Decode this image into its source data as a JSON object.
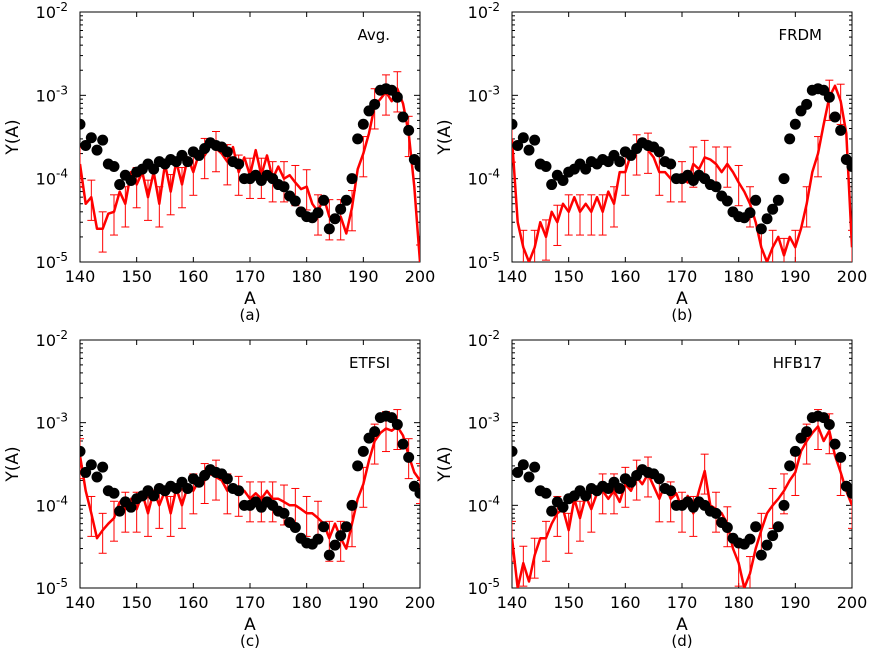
{
  "chart_data": [
    {
      "type": "scatter",
      "model_label": "Avg.",
      "panel_label": "(a)",
      "xlabel": "A",
      "ylabel": "Y(A)",
      "xlim": [
        140,
        200
      ],
      "ylim": [
        1e-05,
        0.01
      ],
      "yscale": "log",
      "xticks": [
        "140",
        "150",
        "160",
        "170",
        "180",
        "190",
        "200"
      ],
      "yticks": [
        {
          "base": "10",
          "exp": "-5"
        },
        {
          "base": "10",
          "exp": "-4"
        },
        {
          "base": "10",
          "exp": "-3"
        },
        {
          "base": "10",
          "exp": "-2"
        }
      ],
      "observed": {
        "color": "#000000",
        "x": [
          140,
          141,
          142,
          143,
          144,
          145,
          146,
          147,
          148,
          149,
          150,
          151,
          152,
          153,
          154,
          155,
          156,
          157,
          158,
          159,
          160,
          161,
          162,
          163,
          164,
          165,
          166,
          167,
          168,
          169,
          170,
          171,
          172,
          173,
          174,
          175,
          176,
          177,
          178,
          179,
          180,
          181,
          182,
          183,
          184,
          185,
          186,
          187,
          188,
          189,
          190,
          191,
          192,
          193,
          194,
          195,
          196,
          197,
          198,
          199,
          200
        ],
        "y": [
          0.00045,
          0.00025,
          0.00031,
          0.00022,
          0.00029,
          0.00015,
          0.00014,
          8.5e-05,
          0.00011,
          9.5e-05,
          0.00012,
          0.00013,
          0.00015,
          0.00013,
          0.00016,
          0.00015,
          0.00017,
          0.00016,
          0.00019,
          0.00016,
          0.00021,
          0.00019,
          0.00023,
          0.00027,
          0.00025,
          0.00024,
          0.00021,
          0.00016,
          0.00015,
          0.0001,
          0.0001,
          0.00011,
          9.5e-05,
          0.00011,
          0.0001,
          8.5e-05,
          8e-05,
          6.2e-05,
          5.4e-05,
          4e-05,
          3.5e-05,
          3.4e-05,
          3.9e-05,
          5.5e-05,
          2.5e-05,
          3.3e-05,
          4.3e-05,
          5.5e-05,
          0.0001,
          0.0003,
          0.00045,
          0.00065,
          0.00078,
          0.00115,
          0.0012,
          0.00115,
          0.00095,
          0.00055,
          0.00038,
          0.00017,
          0.00014
        ]
      },
      "model": {
        "color": "#ff0000",
        "x": [
          140,
          141,
          142,
          143,
          144,
          145,
          146,
          147,
          148,
          149,
          150,
          151,
          152,
          153,
          154,
          155,
          156,
          157,
          158,
          159,
          160,
          161,
          162,
          163,
          164,
          165,
          166,
          167,
          168,
          169,
          170,
          171,
          172,
          173,
          174,
          175,
          176,
          177,
          178,
          179,
          180,
          181,
          182,
          183,
          184,
          185,
          186,
          187,
          188,
          189,
          190,
          191,
          192,
          193,
          194,
          195,
          196,
          197,
          198,
          199,
          200
        ],
        "y": [
          0.00015,
          5e-05,
          6e-05,
          2.5e-05,
          2.5e-05,
          3.8e-05,
          4e-05,
          7e-05,
          5e-05,
          0.00012,
          8.5e-05,
          0.00012,
          6e-05,
          0.00012,
          5e-05,
          0.00015,
          7e-05,
          0.00016,
          8.5e-05,
          0.00018,
          0.00012,
          0.0002,
          0.00019,
          0.00025,
          0.00023,
          0.0002,
          0.00016,
          0.00024,
          0.00012,
          0.00018,
          0.00011,
          0.00022,
          0.00011,
          0.00019,
          0.0001,
          0.00014,
          0.0001,
          0.00011,
          9e-05,
          7.5e-05,
          8e-05,
          5e-05,
          4e-05,
          6e-05,
          3.5e-05,
          3e-05,
          3.5e-05,
          2.2e-05,
          4.5e-05,
          0.00013,
          0.0002,
          0.00035,
          0.00075,
          0.0009,
          0.0011,
          0.00085,
          0.0012,
          0.0008,
          0.00035,
          8e-05,
          1e-05
        ]
      }
    },
    {
      "type": "scatter",
      "model_label": "FRDM",
      "panel_label": "(b)",
      "xlabel": "A",
      "ylabel": "Y(A)",
      "xlim": [
        140,
        200
      ],
      "ylim": [
        1e-05,
        0.01
      ],
      "yscale": "log",
      "xticks": [
        "140",
        "150",
        "160",
        "170",
        "180",
        "190",
        "200"
      ],
      "yticks": [
        {
          "base": "10",
          "exp": "-5"
        },
        {
          "base": "10",
          "exp": "-4"
        },
        {
          "base": "10",
          "exp": "-3"
        },
        {
          "base": "10",
          "exp": "-2"
        }
      ],
      "observed": {
        "color": "#000000",
        "x": [
          140,
          141,
          142,
          143,
          144,
          145,
          146,
          147,
          148,
          149,
          150,
          151,
          152,
          153,
          154,
          155,
          156,
          157,
          158,
          159,
          160,
          161,
          162,
          163,
          164,
          165,
          166,
          167,
          168,
          169,
          170,
          171,
          172,
          173,
          174,
          175,
          176,
          177,
          178,
          179,
          180,
          181,
          182,
          183,
          184,
          185,
          186,
          187,
          188,
          189,
          190,
          191,
          192,
          193,
          194,
          195,
          196,
          197,
          198,
          199,
          200
        ],
        "y": [
          0.00045,
          0.00025,
          0.00031,
          0.00022,
          0.00029,
          0.00015,
          0.00014,
          8.5e-05,
          0.00011,
          9.5e-05,
          0.00012,
          0.00013,
          0.00015,
          0.00013,
          0.00016,
          0.00015,
          0.00017,
          0.00016,
          0.00019,
          0.00016,
          0.00021,
          0.00019,
          0.00023,
          0.00027,
          0.00025,
          0.00024,
          0.00021,
          0.00016,
          0.00015,
          0.0001,
          0.0001,
          0.00011,
          9.5e-05,
          0.00011,
          0.0001,
          8.5e-05,
          8e-05,
          6.2e-05,
          5.4e-05,
          4e-05,
          3.5e-05,
          3.4e-05,
          3.9e-05,
          5.5e-05,
          2.5e-05,
          3.3e-05,
          4.3e-05,
          5.5e-05,
          0.0001,
          0.0003,
          0.00045,
          0.00065,
          0.00078,
          0.00115,
          0.0012,
          0.00115,
          0.00095,
          0.00055,
          0.00038,
          0.00017,
          0.00014
        ]
      },
      "model": {
        "color": "#ff0000",
        "x": [
          140,
          141,
          142,
          143,
          144,
          145,
          146,
          147,
          148,
          149,
          150,
          151,
          152,
          153,
          154,
          155,
          156,
          157,
          158,
          159,
          160,
          161,
          162,
          163,
          164,
          165,
          166,
          167,
          168,
          169,
          170,
          171,
          172,
          173,
          174,
          175,
          176,
          177,
          178,
          179,
          180,
          181,
          182,
          183,
          184,
          185,
          186,
          187,
          188,
          189,
          190,
          191,
          192,
          193,
          194,
          195,
          196,
          197,
          198,
          199,
          200
        ],
        "y": [
          0.0003,
          3e-05,
          1.5e-05,
          1e-05,
          1.5e-05,
          3e-05,
          2e-05,
          4e-05,
          3e-05,
          5e-05,
          4e-05,
          6e-05,
          4e-05,
          5e-05,
          4e-05,
          6e-05,
          4e-05,
          7e-05,
          5e-05,
          0.00012,
          0.00012,
          0.0002,
          0.00021,
          0.00025,
          0.00022,
          0.00018,
          0.00012,
          0.00012,
          0.0001,
          0.0001,
          0.0001,
          9e-05,
          0.00015,
          0.00013,
          0.00018,
          0.00017,
          0.00015,
          0.00012,
          0.00015,
          0.00012,
          9e-05,
          7e-05,
          5e-05,
          3e-05,
          1.5e-05,
          1e-05,
          1.5e-05,
          2e-05,
          1.2e-05,
          2e-05,
          1.5e-05,
          2.5e-05,
          5e-05,
          0.00012,
          0.0002,
          0.00045,
          0.00095,
          0.0013,
          0.00085,
          0.00035,
          1.5e-05
        ]
      }
    },
    {
      "type": "scatter",
      "model_label": "ETFSI",
      "panel_label": "(c)",
      "xlabel": "A",
      "ylabel": "Y(A)",
      "xlim": [
        140,
        200
      ],
      "ylim": [
        1e-05,
        0.01
      ],
      "yscale": "log",
      "xticks": [
        "140",
        "150",
        "160",
        "170",
        "180",
        "190",
        "200"
      ],
      "yticks": [
        {
          "base": "10",
          "exp": "-5"
        },
        {
          "base": "10",
          "exp": "-4"
        },
        {
          "base": "10",
          "exp": "-3"
        },
        {
          "base": "10",
          "exp": "-2"
        }
      ],
      "observed": {
        "color": "#000000",
        "x": [
          140,
          141,
          142,
          143,
          144,
          145,
          146,
          147,
          148,
          149,
          150,
          151,
          152,
          153,
          154,
          155,
          156,
          157,
          158,
          159,
          160,
          161,
          162,
          163,
          164,
          165,
          166,
          167,
          168,
          169,
          170,
          171,
          172,
          173,
          174,
          175,
          176,
          177,
          178,
          179,
          180,
          181,
          182,
          183,
          184,
          185,
          186,
          187,
          188,
          189,
          190,
          191,
          192,
          193,
          194,
          195,
          196,
          197,
          198,
          199,
          200
        ],
        "y": [
          0.00045,
          0.00025,
          0.00031,
          0.00022,
          0.00029,
          0.00015,
          0.00014,
          8.5e-05,
          0.00011,
          9.5e-05,
          0.00012,
          0.00013,
          0.00015,
          0.00013,
          0.00016,
          0.00015,
          0.00017,
          0.00016,
          0.00019,
          0.00016,
          0.00021,
          0.00019,
          0.00023,
          0.00027,
          0.00025,
          0.00024,
          0.00021,
          0.00016,
          0.00015,
          0.0001,
          0.0001,
          0.00011,
          9.5e-05,
          0.00011,
          0.0001,
          8.5e-05,
          8e-05,
          6.2e-05,
          5.4e-05,
          4e-05,
          3.5e-05,
          3.4e-05,
          3.9e-05,
          5.5e-05,
          2.5e-05,
          3.3e-05,
          4.3e-05,
          5.5e-05,
          0.0001,
          0.0003,
          0.00045,
          0.00065,
          0.00078,
          0.00115,
          0.0012,
          0.00115,
          0.00095,
          0.00055,
          0.00038,
          0.00017,
          0.00014
        ]
      },
      "model": {
        "color": "#ff0000",
        "x": [
          140,
          141,
          142,
          143,
          144,
          145,
          146,
          147,
          148,
          149,
          150,
          151,
          152,
          153,
          154,
          155,
          156,
          157,
          158,
          159,
          160,
          161,
          162,
          163,
          164,
          165,
          166,
          167,
          168,
          169,
          170,
          171,
          172,
          173,
          174,
          175,
          176,
          177,
          178,
          179,
          180,
          181,
          182,
          183,
          184,
          185,
          186,
          187,
          188,
          189,
          190,
          191,
          192,
          193,
          194,
          195,
          196,
          197,
          198,
          199,
          200
        ],
        "y": [
          0.0004,
          0.00015,
          8e-05,
          4e-05,
          5e-05,
          6e-05,
          7e-05,
          0.00011,
          9e-05,
          0.00012,
          9e-05,
          0.00014,
          8e-05,
          0.00015,
          0.0001,
          0.00015,
          8e-05,
          0.00016,
          0.0001,
          0.00017,
          0.00015,
          0.0002,
          0.0002,
          0.00024,
          0.00022,
          0.0002,
          0.00015,
          0.00018,
          0.00014,
          0.00015,
          0.00012,
          0.00014,
          0.00012,
          0.00015,
          0.00012,
          0.00012,
          0.00011,
          0.0001,
          0.0001,
          9e-05,
          8e-05,
          8e-05,
          7e-05,
          6e-05,
          4e-05,
          6e-05,
          4e-05,
          3e-05,
          6e-05,
          0.00012,
          0.00018,
          0.00035,
          0.0006,
          0.00075,
          0.00085,
          0.0008,
          0.0009,
          0.0007,
          0.0004,
          0.00025,
          0.0002
        ]
      }
    },
    {
      "type": "scatter",
      "model_label": "HFB17",
      "panel_label": "(d)",
      "xlabel": "A",
      "ylabel": "Y(A)",
      "xlim": [
        140,
        200
      ],
      "ylim": [
        1e-05,
        0.01
      ],
      "yscale": "log",
      "xticks": [
        "140",
        "150",
        "160",
        "170",
        "180",
        "190",
        "200"
      ],
      "yticks": [
        {
          "base": "10",
          "exp": "-5"
        },
        {
          "base": "10",
          "exp": "-4"
        },
        {
          "base": "10",
          "exp": "-3"
        },
        {
          "base": "10",
          "exp": "-2"
        }
      ],
      "observed": {
        "color": "#000000",
        "x": [
          140,
          141,
          142,
          143,
          144,
          145,
          146,
          147,
          148,
          149,
          150,
          151,
          152,
          153,
          154,
          155,
          156,
          157,
          158,
          159,
          160,
          161,
          162,
          163,
          164,
          165,
          166,
          167,
          168,
          169,
          170,
          171,
          172,
          173,
          174,
          175,
          176,
          177,
          178,
          179,
          180,
          181,
          182,
          183,
          184,
          185,
          186,
          187,
          188,
          189,
          190,
          191,
          192,
          193,
          194,
          195,
          196,
          197,
          198,
          199,
          200
        ],
        "y": [
          0.00045,
          0.00025,
          0.00031,
          0.00022,
          0.00029,
          0.00015,
          0.00014,
          8.5e-05,
          0.00011,
          9.5e-05,
          0.00012,
          0.00013,
          0.00015,
          0.00013,
          0.00016,
          0.00015,
          0.00017,
          0.00016,
          0.00019,
          0.00016,
          0.00021,
          0.00019,
          0.00023,
          0.00027,
          0.00025,
          0.00024,
          0.00021,
          0.00016,
          0.00015,
          0.0001,
          0.0001,
          0.00011,
          9.5e-05,
          0.00011,
          0.0001,
          8.5e-05,
          8e-05,
          6.2e-05,
          5.4e-05,
          4e-05,
          3.5e-05,
          3.4e-05,
          3.9e-05,
          5.5e-05,
          2.5e-05,
          3.3e-05,
          4.3e-05,
          5.5e-05,
          0.0001,
          0.0003,
          0.00045,
          0.00065,
          0.00078,
          0.00115,
          0.0012,
          0.00115,
          0.00095,
          0.00055,
          0.00038,
          0.00017,
          0.00014
        ]
      },
      "model": {
        "color": "#ff0000",
        "x": [
          140,
          141,
          142,
          143,
          144,
          145,
          146,
          147,
          148,
          149,
          150,
          151,
          152,
          153,
          154,
          155,
          156,
          157,
          158,
          159,
          160,
          161,
          162,
          163,
          164,
          165,
          166,
          167,
          168,
          169,
          170,
          171,
          172,
          173,
          174,
          175,
          176,
          177,
          178,
          179,
          180,
          181,
          182,
          183,
          184,
          185,
          186,
          187,
          188,
          189,
          190,
          191,
          192,
          193,
          194,
          195,
          196,
          197,
          198,
          199,
          200
        ],
        "y": [
          4e-05,
          1e-05,
          2e-05,
          1.2e-05,
          2.5e-05,
          4e-05,
          4e-05,
          6e-05,
          8e-05,
          9e-05,
          5e-05,
          0.00012,
          7e-05,
          0.00013,
          9e-05,
          0.00014,
          0.00015,
          0.00012,
          0.00015,
          0.00011,
          0.00018,
          0.00015,
          0.00022,
          0.00018,
          0.00024,
          0.00017,
          0.00012,
          0.00018,
          0.00012,
          0.00014,
          9e-05,
          0.00013,
          8e-05,
          0.00015,
          0.00026,
          0.0001,
          9e-05,
          8e-05,
          6e-05,
          3e-05,
          2e-05,
          1e-05,
          1.5e-05,
          3e-05,
          5e-05,
          8e-05,
          0.0001,
          0.00012,
          0.00015,
          0.0002,
          0.00025,
          0.00045,
          0.0006,
          0.00075,
          0.0009,
          0.0006,
          0.0008,
          0.0004,
          0.00025,
          0.00015,
          0.0001
        ]
      }
    }
  ]
}
